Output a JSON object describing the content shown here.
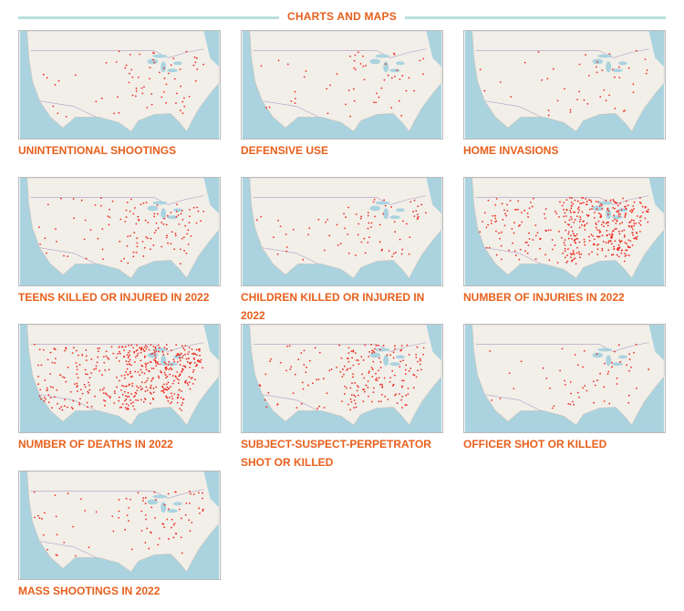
{
  "header": {
    "title": "CHARTS AND MAPS"
  },
  "tiles": [
    {
      "label": "UNINTENTIONAL SHOOTINGS"
    },
    {
      "label": "DEFENSIVE USE"
    },
    {
      "label": "HOME INVASIONS"
    },
    {
      "label": "TEENS KILLED OR INJURED IN 2022"
    },
    {
      "label": "CHILDREN KILLED OR INJURED IN 2022"
    },
    {
      "label": "NUMBER OF INJURIES IN 2022"
    },
    {
      "label": "NUMBER OF DEATHS IN 2022"
    },
    {
      "label": "SUBJECT-SUSPECT-PERPETRATOR SHOT OR KILLED"
    },
    {
      "label": "OFFICER SHOT OR KILLED"
    },
    {
      "label": "MASS SHOOTINGS IN 2022"
    }
  ]
}
